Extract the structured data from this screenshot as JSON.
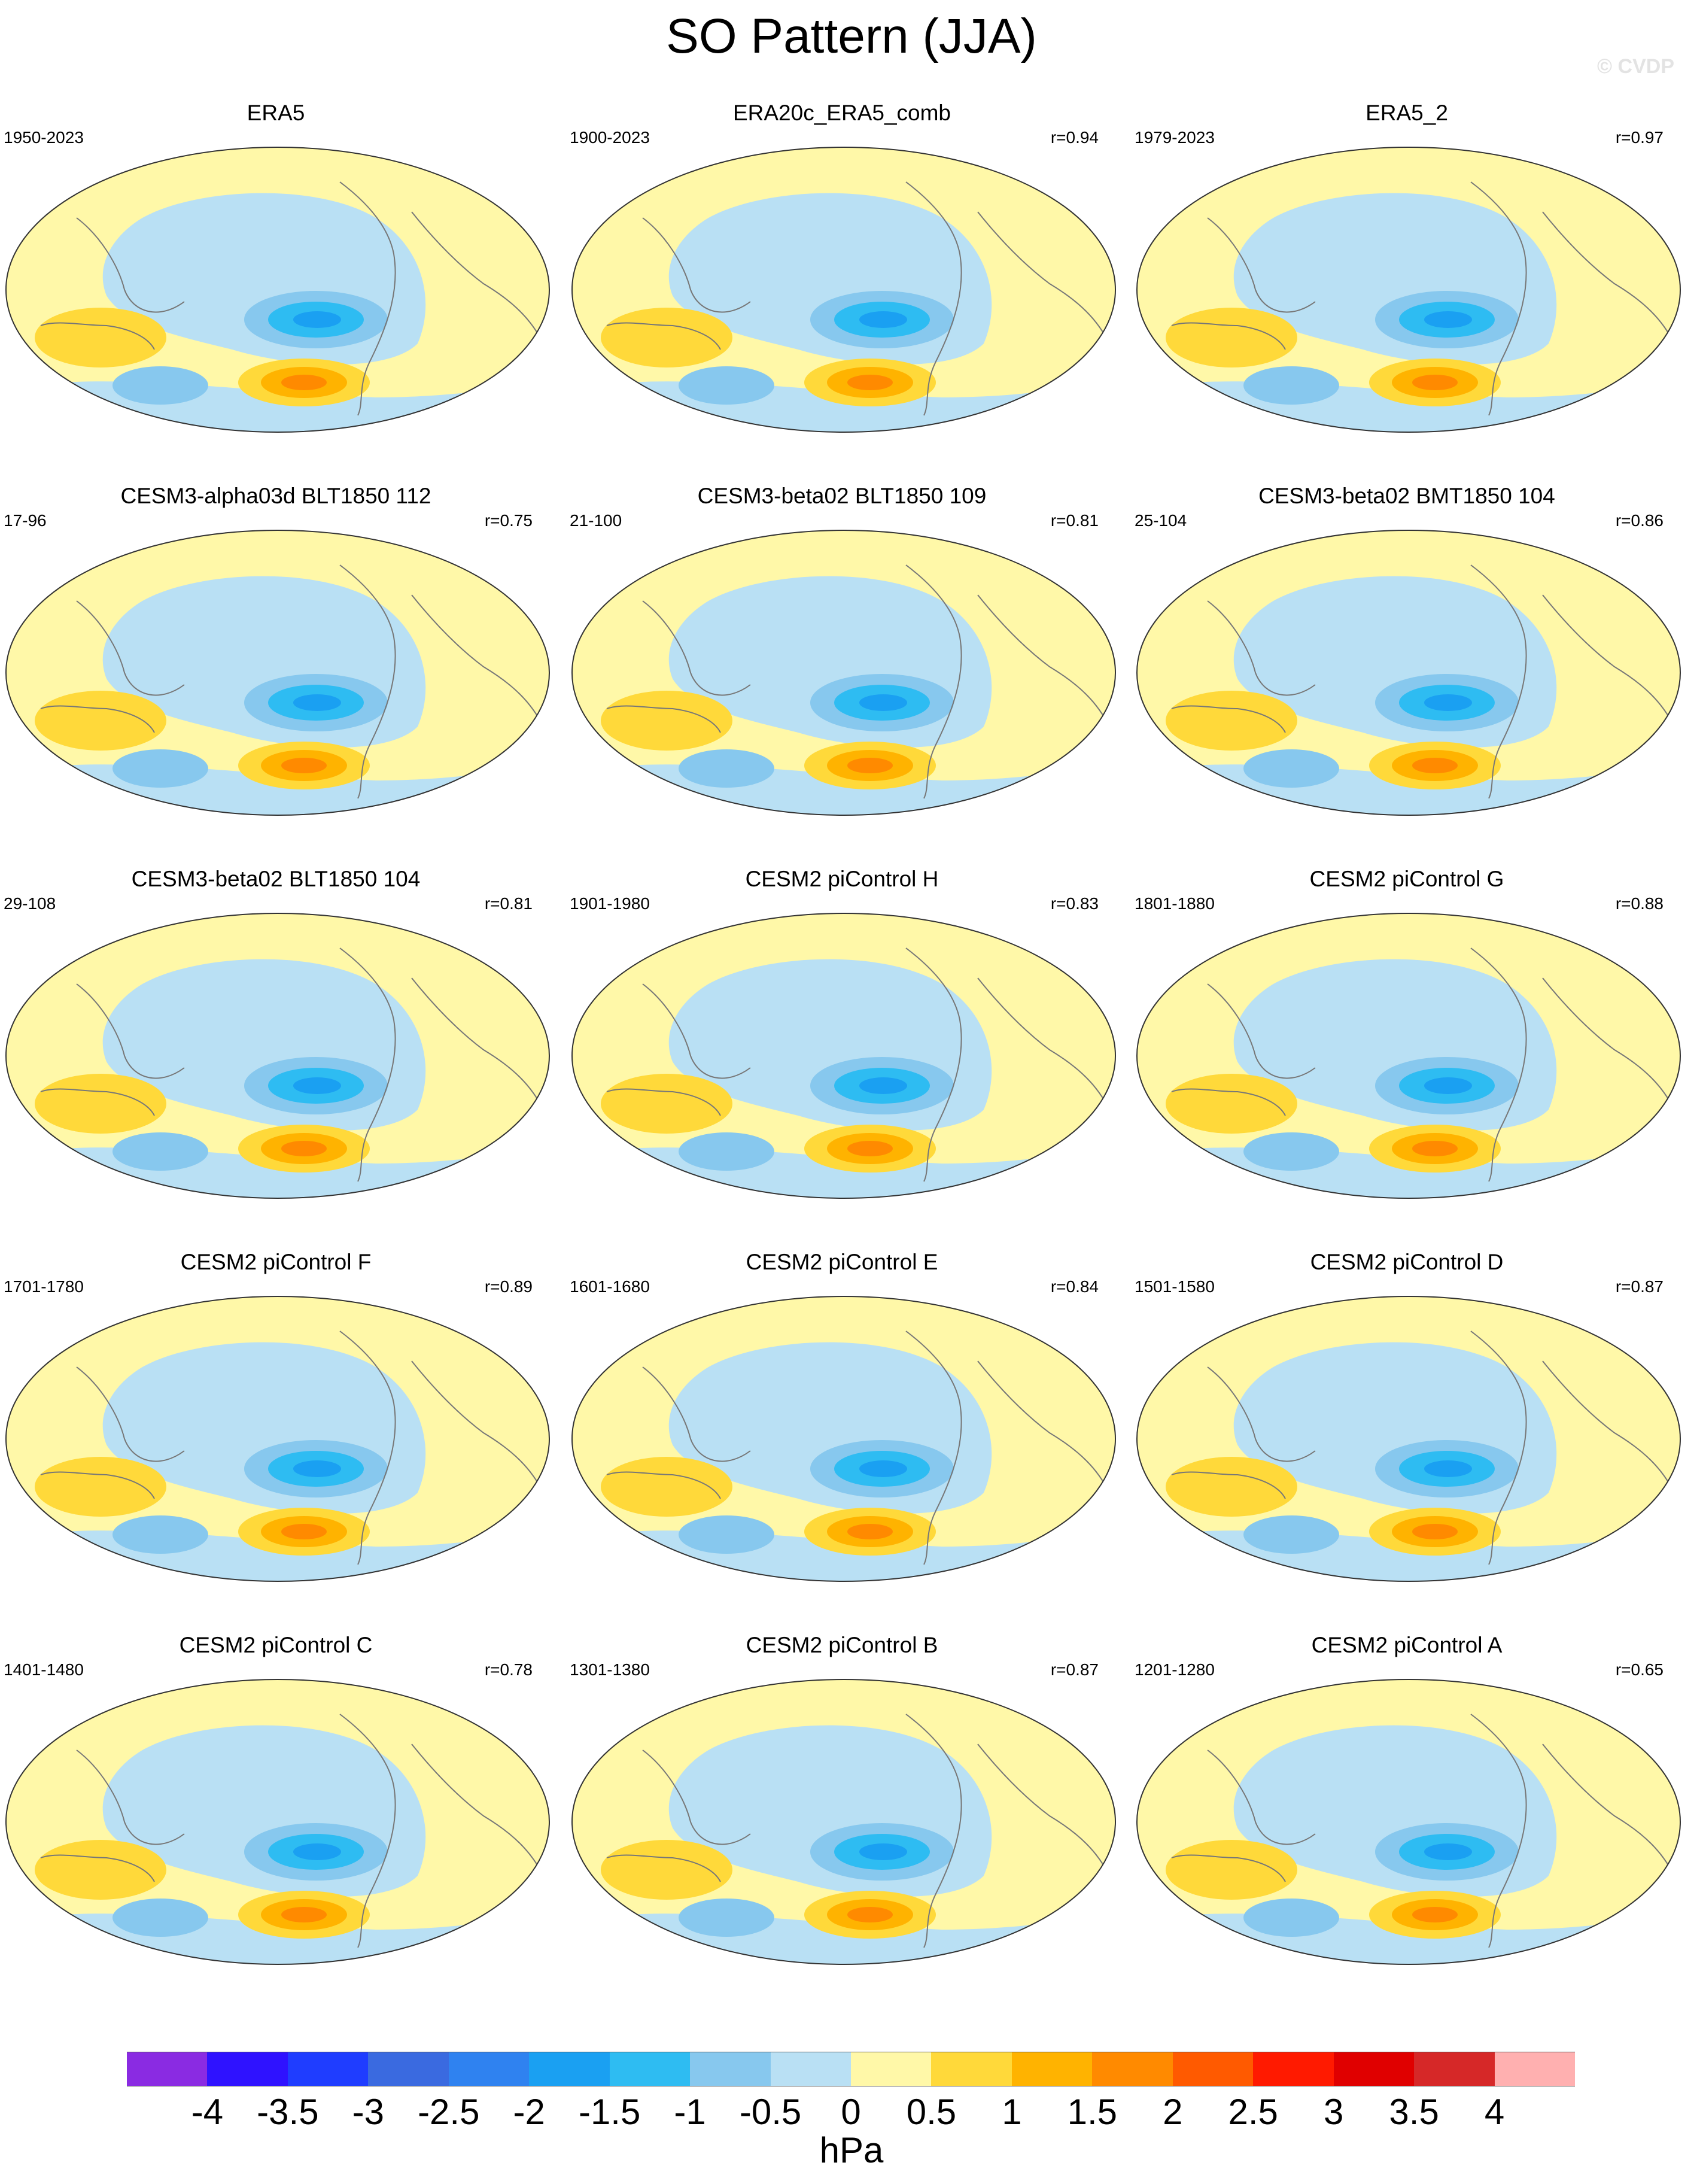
{
  "figure": {
    "title": "SO Pattern (JJA)",
    "watermark": "© CVDP",
    "units": "hPa"
  },
  "panels": [
    {
      "title": "ERA5",
      "period": "1950-2023",
      "corr": ""
    },
    {
      "title": "ERA20c_ERA5_comb",
      "period": "1900-2023",
      "corr": "r=0.94"
    },
    {
      "title": "ERA5_2",
      "period": "1979-2023",
      "corr": "r=0.97"
    },
    {
      "title": "CESM3-alpha03d BLT1850 112",
      "period": "17-96",
      "corr": "r=0.75"
    },
    {
      "title": "CESM3-beta02 BLT1850 109",
      "period": "21-100",
      "corr": "r=0.81"
    },
    {
      "title": "CESM3-beta02 BMT1850 104",
      "period": "25-104",
      "corr": "r=0.86"
    },
    {
      "title": "CESM3-beta02 BLT1850 104",
      "period": "29-108",
      "corr": "r=0.81"
    },
    {
      "title": "CESM2 piControl H",
      "period": "1901-1980",
      "corr": "r=0.83"
    },
    {
      "title": "CESM2 piControl G",
      "period": "1801-1880",
      "corr": "r=0.88"
    },
    {
      "title": "CESM2 piControl F",
      "period": "1701-1780",
      "corr": "r=0.89"
    },
    {
      "title": "CESM2 piControl E",
      "period": "1601-1680",
      "corr": "r=0.84"
    },
    {
      "title": "CESM2 piControl D",
      "period": "1501-1580",
      "corr": "r=0.87"
    },
    {
      "title": "CESM2 piControl C",
      "period": "1401-1480",
      "corr": "r=0.78"
    },
    {
      "title": "CESM2 piControl B",
      "period": "1301-1380",
      "corr": "r=0.87"
    },
    {
      "title": "CESM2 piControl A",
      "period": "1201-1280",
      "corr": "r=0.65"
    }
  ],
  "colorbar": {
    "labels": [
      "-4",
      "-3.5",
      "-3",
      "-2.5",
      "-2",
      "-1.5",
      "-1",
      "-0.5",
      "0",
      "0.5",
      "1",
      "1.5",
      "2",
      "2.5",
      "3",
      "3.5",
      "4"
    ],
    "colors": [
      "#8a2be2",
      "#2f12ff",
      "#1f3dff",
      "#3a6ae0",
      "#2f82f0",
      "#1aa0f2",
      "#2ebcf2",
      "#87c8ee",
      "#b9e0f4",
      "#fff8a8",
      "#ffd93a",
      "#ffb300",
      "#ff8a00",
      "#ff5a00",
      "#ff1a00",
      "#e00000",
      "#d62828",
      "#ffb0b0"
    ]
  },
  "map_colors": {
    "neg_weak": "#b9e0f4",
    "neg_mid": "#87c8ee",
    "neg_strong": "#2ebcf2",
    "neg_core": "#1aa0f2",
    "pos_weak": "#fff8a8",
    "pos_mid": "#ffd93a",
    "pos_strong": "#ffb300",
    "pos_core": "#ff8a00",
    "pos_peak": "#ff5a00"
  }
}
